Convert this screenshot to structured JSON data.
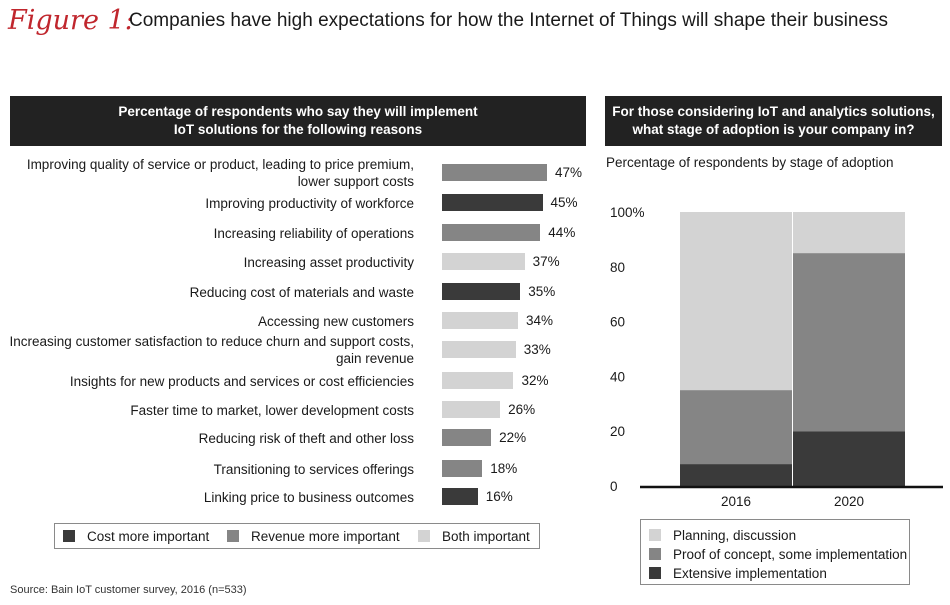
{
  "figure_label": "Figure 1:",
  "title": "Companies have high expectations for how the Internet of Things will shape their business",
  "source": "Source: Bain IoT customer survey, 2016 (n=533)",
  "colors": {
    "cost": "#3a3a3a",
    "revenue": "#858585",
    "both": "#d3d3d3",
    "header_bg": "#222222",
    "figure_label": "#c0262d",
    "extensive": "#3a3a3a",
    "proof": "#858585",
    "planning": "#d3d3d3"
  },
  "chart_data": [
    {
      "type": "bar",
      "orientation": "horizontal",
      "title_lines": [
        "Percentage of respondents who say they will implement",
        "IoT solutions for the following reasons"
      ],
      "unit": "%",
      "categories": [
        [
          "Improving quality of service or product, leading to price premium,",
          "lower support costs"
        ],
        [
          "Improving productivity of workforce"
        ],
        [
          "Increasing reliability of operations"
        ],
        [
          "Increasing asset productivity"
        ],
        [
          "Reducing cost of materials and waste"
        ],
        [
          "Accessing new customers"
        ],
        [
          "Increasing customer satisfaction to reduce churn and support costs,",
          "gain revenue"
        ],
        [
          "Insights for new products and services or cost efficiencies"
        ],
        [
          "Faster time to market, lower development costs"
        ],
        [
          "Reducing risk of theft and other loss"
        ],
        [
          "Transitioning to services offerings"
        ],
        [
          "Linking price to business outcomes"
        ]
      ],
      "values": [
        47,
        45,
        44,
        37,
        35,
        34,
        33,
        32,
        26,
        22,
        18,
        16
      ],
      "value_labels": [
        "47%",
        "45%",
        "44%",
        "37%",
        "35%",
        "34%",
        "33%",
        "32%",
        "26%",
        "22%",
        "18%",
        "16%"
      ],
      "groups": [
        "revenue",
        "cost",
        "revenue",
        "both",
        "cost",
        "both",
        "both",
        "both",
        "both",
        "revenue",
        "revenue",
        "cost"
      ],
      "legend": [
        {
          "key": "cost",
          "label": "Cost more important"
        },
        {
          "key": "revenue",
          "label": "Revenue more important"
        },
        {
          "key": "both",
          "label": "Both important"
        }
      ],
      "legend_position": "bottom"
    },
    {
      "type": "bar",
      "stacked": true,
      "title_lines": [
        "For those considering IoT and analytics solutions,",
        "what stage of adoption is your company in?"
      ],
      "subtitle": "Percentage of respondents by stage of adoption",
      "categories": [
        "2016",
        "2020"
      ],
      "series": [
        {
          "name": "Extensive implementation",
          "key": "extensive",
          "values": [
            8,
            20
          ]
        },
        {
          "name": "Proof of concept, some implementation",
          "key": "proof",
          "values": [
            27,
            65
          ]
        },
        {
          "name": "Planning, discussion",
          "key": "planning",
          "values": [
            65,
            15
          ]
        }
      ],
      "legend_order": [
        "planning",
        "proof",
        "extensive"
      ],
      "ylim": [
        0,
        100
      ],
      "y_ticks": [
        0,
        20,
        40,
        60,
        80,
        100
      ],
      "y_tick_labels": [
        "0",
        "20",
        "40",
        "60",
        "80",
        "100%"
      ],
      "legend_position": "bottom"
    }
  ]
}
